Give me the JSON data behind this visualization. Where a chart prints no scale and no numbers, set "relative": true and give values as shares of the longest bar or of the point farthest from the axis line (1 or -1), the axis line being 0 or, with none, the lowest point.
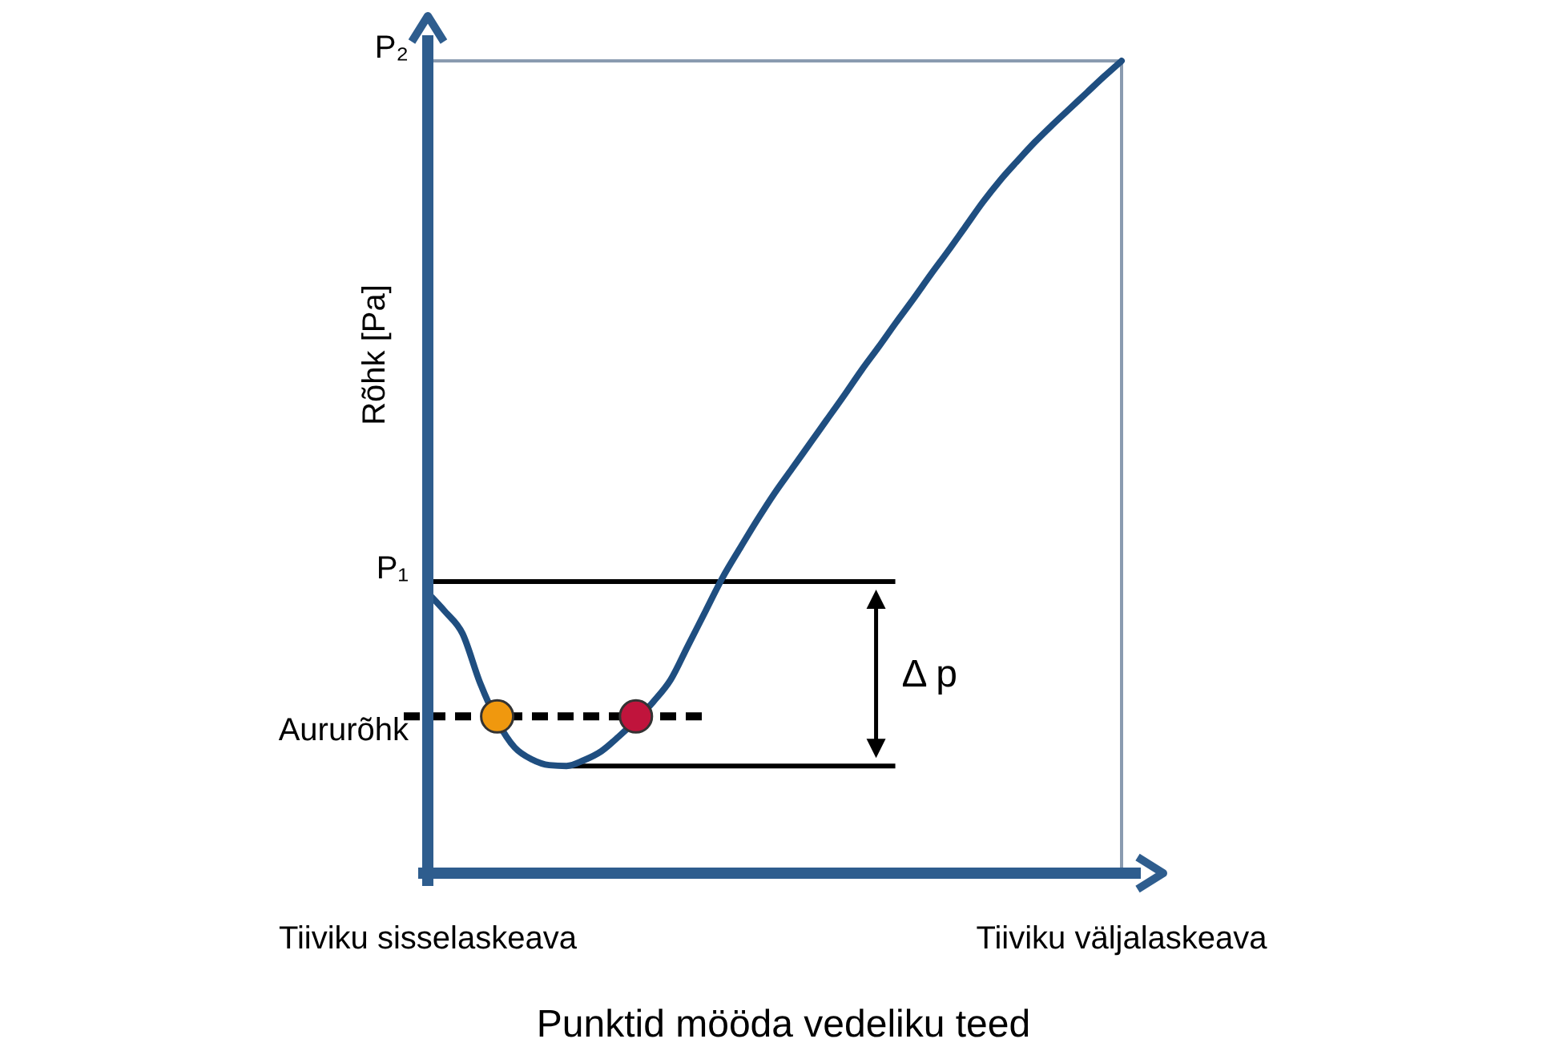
{
  "chart_data": {
    "type": "line",
    "relative": true,
    "xlabel": "Punktid mööda vedeliku teed",
    "ylabel": "Rõhk [Pa]",
    "categories": [
      "Tiiviku sisselaskeava",
      null,
      null,
      null,
      null,
      null,
      null,
      null,
      null,
      null,
      null,
      null,
      null,
      null,
      null,
      null,
      null,
      null,
      null,
      null,
      null,
      null,
      null,
      null,
      null,
      null,
      null,
      null,
      null,
      null,
      null,
      null,
      null,
      null,
      null,
      null,
      null,
      null,
      null,
      null,
      "Tiiviku väljalaskeava"
    ],
    "series": [
      {
        "color": "#1f4e80",
        "values": [
          0.345,
          0.322,
          0.295,
          0.235,
          null,
          0.155,
          0.14,
          0.133,
          0.132,
          0.139,
          0.15,
          0.168,
          null,
          0.211,
          0.238,
          0.28,
          0.322,
          0.364,
          0.4,
          0.435,
          0.468,
          0.498,
          0.528,
          0.558,
          0.588,
          0.619,
          0.648,
          0.678,
          0.707,
          0.737,
          0.766,
          0.796,
          0.826,
          0.853,
          0.877,
          0.9,
          0.921,
          0.941,
          0.961,
          0.981,
          1
        ]
      },
      {
        "type": "scatter",
        "marker": "circle",
        "color": "#f0980e",
        "values": [
          null,
          null,
          null,
          null,
          0.193,
          null,
          null,
          null,
          null,
          null,
          null,
          null,
          null,
          null,
          null,
          null,
          null,
          null,
          null,
          null,
          null,
          null,
          null,
          null,
          null,
          null,
          null,
          null,
          null,
          null,
          null,
          null,
          null,
          null,
          null,
          null,
          null,
          null,
          null,
          null,
          null
        ]
      },
      {
        "type": "scatter",
        "marker": "circle",
        "color": "#c0143c",
        "values": [
          null,
          null,
          null,
          null,
          null,
          null,
          null,
          null,
          null,
          null,
          null,
          null,
          0.193,
          null,
          null,
          null,
          null,
          null,
          null,
          null,
          null,
          null,
          null,
          null,
          null,
          null,
          null,
          null,
          null,
          null,
          null,
          null,
          null,
          null,
          null,
          null,
          null,
          null,
          null,
          null,
          null
        ]
      }
    ],
    "ref_lines": [
      {
        "axis": "y",
        "value": 1,
        "label": "P₂",
        "color": "#8a9bb0"
      },
      {
        "axis": "y",
        "value": 0.359,
        "label": "P₁",
        "color": "#000000"
      },
      {
        "axis": "y",
        "value": 0.193,
        "label": "Aururõhk",
        "color": "#000000",
        "line_style": "dashed"
      },
      {
        "axis": "y",
        "value": 0.132,
        "label": null,
        "color": "#000000"
      }
    ],
    "annotations": [
      "Δ p"
    ]
  }
}
